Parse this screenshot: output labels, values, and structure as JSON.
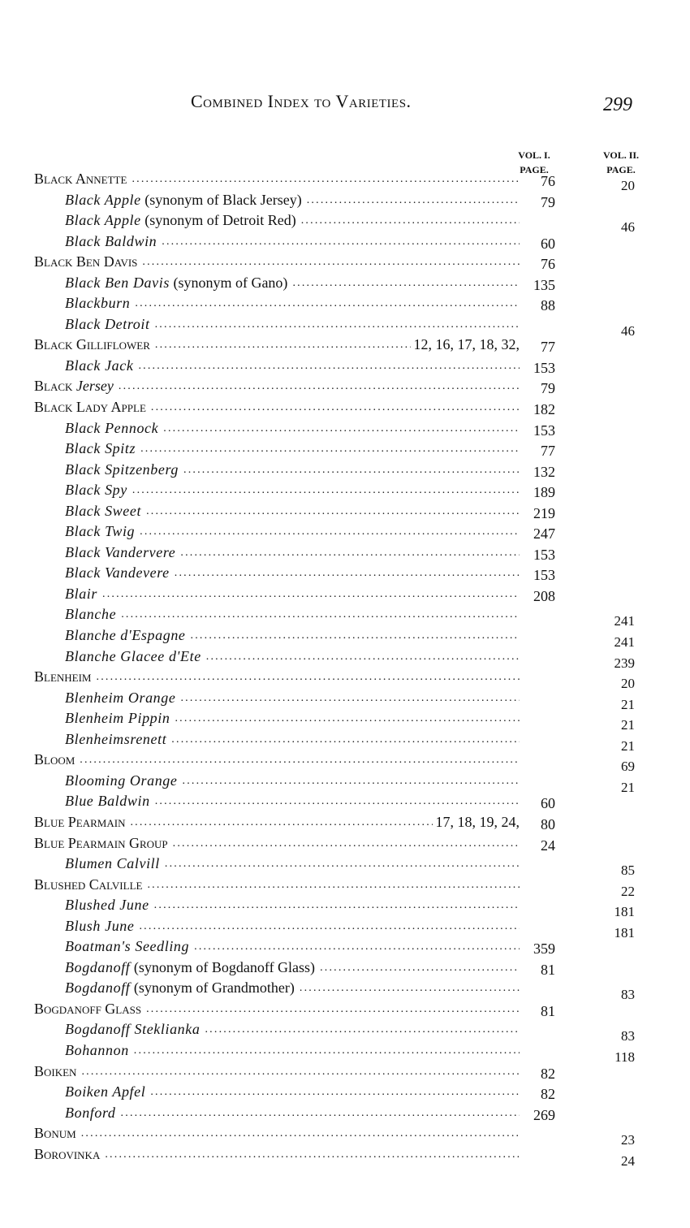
{
  "header": {
    "title": "Combined Index to Varieties.",
    "page_number": "299"
  },
  "columns": {
    "vol1": [
      "VOL. I.",
      "PAGE."
    ],
    "vol2": [
      "VOL. II.",
      "PAGE."
    ]
  },
  "entries": [
    {
      "name": "Black Annette",
      "kind": "main",
      "vol1": "76",
      "vol2": "20"
    },
    {
      "name": "Black Apple",
      "kind": "sub",
      "note": "(synonym of Black Jersey)",
      "vol1": "79"
    },
    {
      "name": "Black Apple",
      "kind": "sub",
      "note": "(synonym of Detroit Red)",
      "vol2": "46"
    },
    {
      "name": "Black Baldwin",
      "kind": "sub",
      "vol1": "60"
    },
    {
      "name": "Black Ben Davis",
      "kind": "main",
      "vol1": "76"
    },
    {
      "name": "Black Ben Davis",
      "kind": "sub",
      "note": "(synonym of Gano)",
      "vol1": "135"
    },
    {
      "name": "Blackburn",
      "kind": "sub",
      "vol1": "88"
    },
    {
      "name": "Black Detroit",
      "kind": "sub",
      "vol2": "46"
    },
    {
      "name": "Black Gilliflower",
      "kind": "main",
      "refs": "12, 16, 17, 18, 32,",
      "vol1": "77"
    },
    {
      "name": "Black Jack",
      "kind": "sub",
      "vol1": "153"
    },
    {
      "name": "Black",
      "italic": "Jersey",
      "kind": "main",
      "vol1": "79"
    },
    {
      "name": "Black Lady Apple",
      "kind": "main",
      "vol1": "182"
    },
    {
      "name": "Black Pennock",
      "kind": "sub",
      "vol1": "153"
    },
    {
      "name": "Black Spitz",
      "kind": "sub",
      "vol1": "77"
    },
    {
      "name": "Black Spitzenberg",
      "kind": "sub",
      "vol1": "132"
    },
    {
      "name": "Black Spy",
      "kind": "sub",
      "vol1": "189"
    },
    {
      "name": "Black Sweet",
      "kind": "sub",
      "vol1": "219"
    },
    {
      "name": "Black Twig",
      "kind": "sub",
      "vol1": "247"
    },
    {
      "name": "Black Vandervere",
      "kind": "sub",
      "vol1": "153"
    },
    {
      "name": "Black Vandevere",
      "kind": "sub",
      "vol1": "153"
    },
    {
      "name": "Blair",
      "kind": "sub",
      "vol1": "208"
    },
    {
      "name": "Blanche",
      "kind": "sub",
      "vol2": "241"
    },
    {
      "name": "Blanche d'Espagne",
      "kind": "sub",
      "vol2": "241"
    },
    {
      "name": "Blanche Glacee d'Ete",
      "kind": "sub",
      "vol2": "239"
    },
    {
      "name": "Blenheim",
      "kind": "main",
      "vol2": "20"
    },
    {
      "name": "Blenheim Orange",
      "kind": "sub",
      "vol2": "21"
    },
    {
      "name": "Blenheim Pippin",
      "kind": "sub",
      "vol2": "21"
    },
    {
      "name": "Blenheimsrenett",
      "kind": "sub",
      "vol2": "21"
    },
    {
      "name": "Bloom",
      "kind": "main",
      "vol2": "69"
    },
    {
      "name": "Blooming Orange",
      "kind": "sub",
      "vol2": "21"
    },
    {
      "name": "Blue Baldwin",
      "kind": "sub",
      "vol1": "60"
    },
    {
      "name": "Blue Pearmain",
      "kind": "main",
      "refs": "17, 18, 19, 24,",
      "vol1": "80"
    },
    {
      "name": "Blue Pearmain Group",
      "kind": "main",
      "vol1": "24"
    },
    {
      "name": "Blumen Calvill",
      "kind": "sub",
      "vol2": "85"
    },
    {
      "name": "Blushed Calville",
      "kind": "main",
      "vol2": "22"
    },
    {
      "name": "Blushed June",
      "kind": "sub",
      "vol2": "181"
    },
    {
      "name": "Blush June",
      "kind": "sub",
      "vol2": "181"
    },
    {
      "name": "Boatman's Seedling",
      "kind": "sub",
      "vol1": "359"
    },
    {
      "name": "Bogdanoff",
      "kind": "sub",
      "note": "(synonym of Bogdanoff Glass)",
      "vol1": "81"
    },
    {
      "name": "Bogdanoff",
      "kind": "sub",
      "note": "(synonym of Grandmother)",
      "vol2": "83"
    },
    {
      "name": "Bogdanoff Glass",
      "kind": "main",
      "vol1": "81"
    },
    {
      "name": "Bogdanoff Steklianka",
      "kind": "sub",
      "vol2": "83"
    },
    {
      "name": "Bohannon",
      "kind": "sub",
      "vol2": "118"
    },
    {
      "name": "Boiken",
      "kind": "main",
      "vol1": "82"
    },
    {
      "name": "Boiken Apfel",
      "kind": "sub",
      "vol1": "82"
    },
    {
      "name": "Bonford",
      "kind": "sub",
      "vol1": "269"
    },
    {
      "name": "Bonum",
      "kind": "main",
      "vol2": "23"
    },
    {
      "name": "Borovinka",
      "kind": "main",
      "vol2": "24"
    }
  ]
}
